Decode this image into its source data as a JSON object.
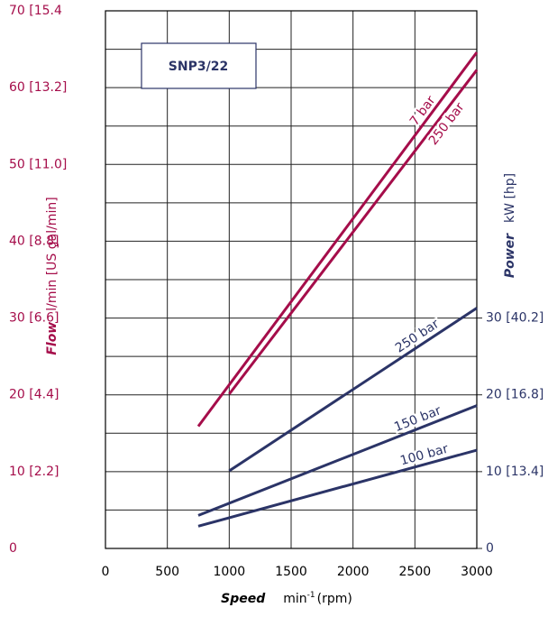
{
  "chart_data": {
    "type": "line",
    "title": "SNP3/22",
    "x_label": {
      "name": "Speed",
      "unit": "min",
      "sup": "-1",
      "rest": "(rpm)"
    },
    "y_label": {
      "name": "Flow",
      "unit": "l/min  [US gal/min]"
    },
    "y2_label": {
      "name": "Power",
      "unit": "kW  [hp]"
    },
    "xlim": [
      0,
      3000
    ],
    "xticks": [
      0,
      500,
      1000,
      1500,
      2000,
      2500,
      3000
    ],
    "ylim": [
      0,
      70
    ],
    "yticks": [
      0,
      {
        "value": 10,
        "label": "10 [2.2]"
      },
      {
        "value": 20,
        "label": "20 [4.4]"
      },
      {
        "value": 30,
        "label": "30 [6.6]"
      },
      {
        "value": 40,
        "label": "40 [8.8]"
      },
      {
        "value": 50,
        "label": "50 [11.0]"
      },
      {
        "value": 60,
        "label": "60 [13.2]"
      },
      {
        "value": 70,
        "label": "70 [15.4"
      }
    ],
    "yminor": [
      5,
      15,
      25,
      35,
      45,
      55,
      65
    ],
    "y2lim": [
      0,
      70
    ],
    "y2ticks": [
      0,
      {
        "value": 10,
        "label": "10 [13.4]"
      },
      {
        "value": 20,
        "label": "20 [16.8]"
      },
      {
        "value": 30,
        "label": "30 [40.2]"
      }
    ],
    "grid": true,
    "series": [
      {
        "name": "7 bar",
        "color": "#a50d4a",
        "x": [
          750,
          3000
        ],
        "values": [
          15.9,
          64.6
        ]
      },
      {
        "name": "250 bar",
        "color": "#a50d4a",
        "x": [
          1000,
          3000
        ],
        "values": [
          20.1,
          62.3
        ]
      },
      {
        "name": "250 bar",
        "color": "#2b3467",
        "axis": "y2",
        "x": [
          1000,
          3000
        ],
        "values": [
          10.1,
          31.3
        ]
      },
      {
        "name": "150 bar",
        "color": "#2b3467",
        "axis": "y2",
        "x": [
          750,
          3000
        ],
        "values": [
          4.3,
          18.6
        ]
      },
      {
        "name": "100 bar",
        "color": "#2b3467",
        "axis": "y2",
        "x": [
          750,
          3000
        ],
        "values": [
          2.9,
          12.8
        ]
      }
    ]
  }
}
